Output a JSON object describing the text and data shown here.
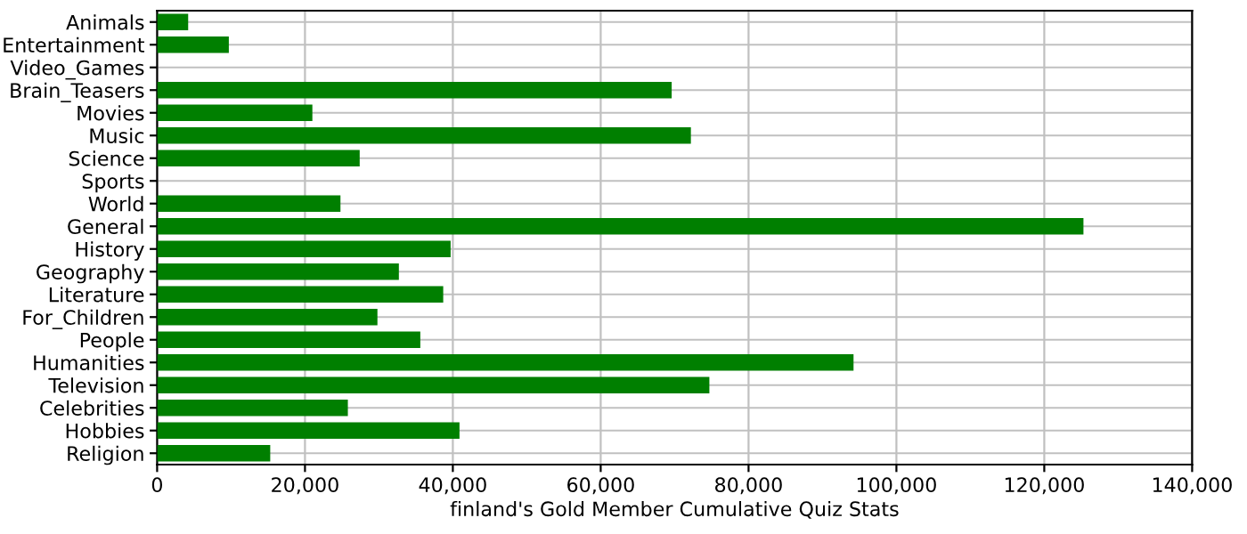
{
  "chart_data": {
    "type": "bar",
    "orientation": "horizontal",
    "xlabel": "finland's Gold Member Cumulative Quiz Stats",
    "categories": [
      "Animals",
      "Entertainment",
      "Video_Games",
      "Brain_Teasers",
      "Movies",
      "Music",
      "Science",
      "Sports",
      "World",
      "General",
      "History",
      "Geography",
      "Literature",
      "For_Children",
      "People",
      "Humanities",
      "Television",
      "Celebrities",
      "Hobbies",
      "Religion"
    ],
    "values": [
      4200,
      9700,
      0,
      69600,
      21000,
      72200,
      27400,
      0,
      24800,
      125300,
      39700,
      32700,
      38700,
      29800,
      35600,
      94200,
      74700,
      25800,
      40900,
      15300
    ],
    "color": "#007f00",
    "xlim": [
      0,
      140000
    ],
    "xticks": [
      {
        "value": 0,
        "label": "0"
      },
      {
        "value": 20000,
        "label": "20,000"
      },
      {
        "value": 40000,
        "label": "40,000"
      },
      {
        "value": 60000,
        "label": "60,000"
      },
      {
        "value": 80000,
        "label": "80,000"
      },
      {
        "value": 100000,
        "label": "100,000"
      },
      {
        "value": 120000,
        "label": "120,000"
      },
      {
        "value": 140000,
        "label": "140,000"
      }
    ],
    "grid": true
  }
}
